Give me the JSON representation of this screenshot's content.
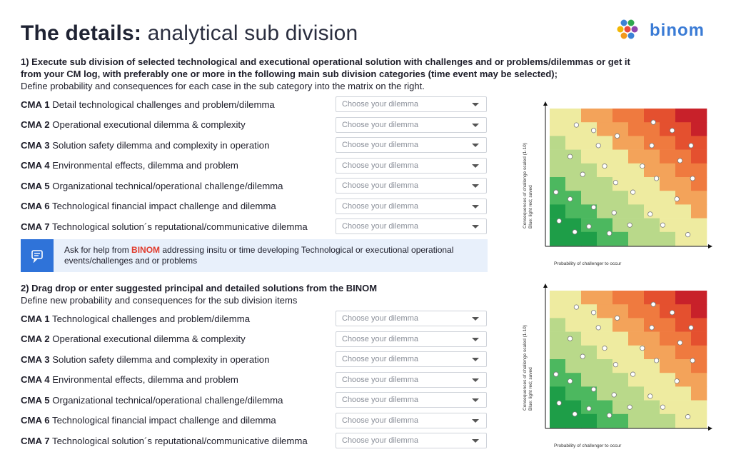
{
  "header": {
    "title_bold": "The details:",
    "title_light": " analytical sub division",
    "logo_text": "binom"
  },
  "section1": {
    "heading_bold": "1) Execute sub division of selected technological and executional operational solution with challenges and or problems/dilemmas or get it from your CM log,  with preferably one or more in the following main sub division categories (time event may be selected);",
    "heading_normal": "Define probability and consequences  for each case in the sub category into the matrix on the right.",
    "rows": [
      {
        "code": "CMA 1",
        "label": " Detail technological challenges and problem/dilemma"
      },
      {
        "code": "CMA 2",
        "label": " Operational executional dilemma & complexity"
      },
      {
        "code": "CMA 3",
        "label": " Solution safety dilemma and complexity in operation"
      },
      {
        "code": "CMA 4",
        "label": " Environmental effects, dilemma and problem"
      },
      {
        "code": "CMA 5",
        "label": " Organizational technical/operational challenge/dilemma"
      },
      {
        "code": "CMA 6",
        "label": " Technological financial  impact challenge and dilemma"
      },
      {
        "code": "CMA 7",
        "label": " Technological solution´s reputational/communicative dilemma"
      }
    ]
  },
  "help_box": {
    "text_before": "Ask for help from ",
    "brand": "BINOM",
    "text_after": " addressing insitu or time developing Technological or executional operational events/challenges and or problems"
  },
  "section2": {
    "heading_bold": "2) Drag drop or enter suggested principal and detailed solutions from the BINOM",
    "heading_normal": "Define new probability and consequences for the sub division items",
    "rows": [
      {
        "code": "CMA 1",
        "label": " Technological challenges and problem/dilemma"
      },
      {
        "code": "CMA 2",
        "label": " Operational executional dilemma & complexity"
      },
      {
        "code": "CMA 3",
        "label": " Solution safety dilemma and complexity in operation"
      },
      {
        "code": "CMA 4",
        "label": " Environmental effects, dilemma and problem"
      },
      {
        "code": "CMA 5",
        "label": " Organizational technical/operational challenge/dilemma"
      },
      {
        "code": "CMA 6",
        "label": " Technological financial impact challenge and dilemma"
      },
      {
        "code": "CMA 7",
        "label": " Technological solution´s reputational/communicative dilemma"
      }
    ]
  },
  "dropdown_placeholder": "Choose your dilemma",
  "matrix": {
    "y_label_1": "Consequences  of challenge scaled (1-10)",
    "y_label_2": "Blue: light red; saved",
    "x_label": "Probability of challenger to occur",
    "grid_size": 10,
    "colors": {
      "dark_green": "#1e9e48",
      "green": "#4cb85f",
      "light_green": "#b9d98a",
      "yellow": "#eeeba0",
      "orange": "#f3a35a",
      "dark_orange": "#ef7a3f",
      "red": "#e4502f",
      "dark_red": "#c8212a"
    }
  }
}
